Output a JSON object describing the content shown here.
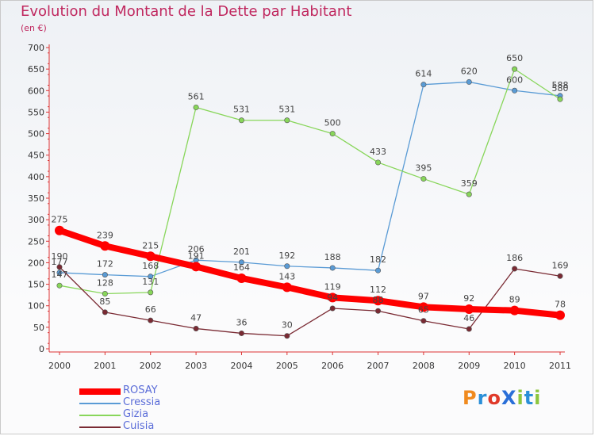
{
  "header": {
    "title": "Evolution du Montant de la Dette par Habitant",
    "unit": "(en €)"
  },
  "logo": {
    "text": "ProXiti"
  },
  "chart_data": {
    "type": "line",
    "title": "Evolution du Montant de la Dette par Habitant",
    "ylabel": "(en €)",
    "xlabel": "",
    "x": [
      "2000",
      "2001",
      "2002",
      "2003",
      "2004",
      "2005",
      "2006",
      "2007",
      "2008",
      "2009",
      "2010",
      "2011"
    ],
    "ylim": [
      0,
      700
    ],
    "yticks": [
      0,
      50,
      100,
      150,
      200,
      250,
      300,
      350,
      400,
      450,
      500,
      550,
      600,
      650,
      700
    ],
    "grid": false,
    "legend_position": "bottom-left",
    "series": [
      {
        "name": "ROSAY",
        "color": "#ff0000",
        "values": [
          275,
          239,
          215,
          191,
          164,
          143,
          119,
          112,
          97,
          92,
          89,
          78
        ]
      },
      {
        "name": "Cressia",
        "color": "#5a9bd5",
        "values": [
          177,
          172,
          168,
          206,
          201,
          192,
          188,
          182,
          614,
          620,
          600,
          588
        ]
      },
      {
        "name": "Gizia",
        "color": "#88d65a",
        "values": [
          147,
          128,
          131,
          561,
          531,
          531,
          500,
          433,
          395,
          359,
          650,
          580
        ]
      },
      {
        "name": "Cuisia",
        "color": "#7a2a33",
        "values": [
          190,
          85,
          66,
          47,
          36,
          30,
          94,
          88,
          65,
          46,
          186,
          169
        ]
      }
    ]
  }
}
